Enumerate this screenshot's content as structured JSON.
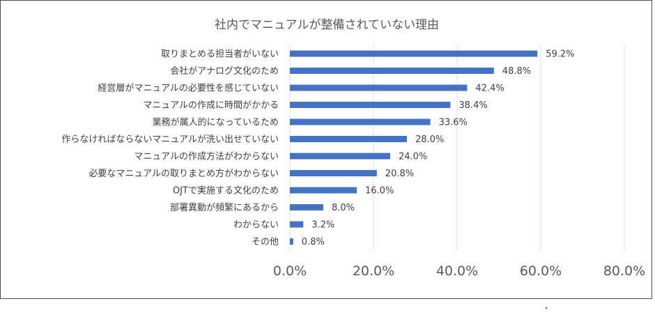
{
  "chart_data": {
    "type": "bar",
    "orientation": "horizontal",
    "title": "社内でマニュアルが整備されていない理由",
    "categories": [
      "取りまとめる担当者がいない",
      "会社がアナログ文化のため",
      "経営層がマニュアルの必要性を感じていない",
      "マニュアルの作成に時間がかかる",
      "業務が属人的になっているため",
      "作らなければならないマニュアルが洗い出せていない",
      "マニュアルの作成方法がわからない",
      "必要なマニュアルの取りまとめ方がわからない",
      "OJTで実施する文化のため",
      "部署異動が頻繁にあるから",
      "わからない",
      "その他"
    ],
    "values": [
      59.2,
      48.8,
      42.4,
      38.4,
      33.6,
      28.0,
      24.0,
      20.8,
      16.0,
      8.0,
      3.2,
      0.8
    ],
    "value_labels": [
      "59.2%",
      "48.8%",
      "42.4%",
      "38.4%",
      "33.6%",
      "28.0%",
      "24.0%",
      "20.8%",
      "16.0%",
      "8.0%",
      "3.2%",
      "0.8%"
    ],
    "x_ticks": [
      0,
      20,
      40,
      60,
      80
    ],
    "x_tick_labels": [
      "0.0%",
      "20.0%",
      "40.0%",
      "60.0%",
      "80.0%"
    ],
    "xlim": [
      0,
      80
    ],
    "xlabel": "",
    "ylabel": "",
    "grid": true,
    "legend": "none",
    "bar_color": "#4472c4"
  }
}
